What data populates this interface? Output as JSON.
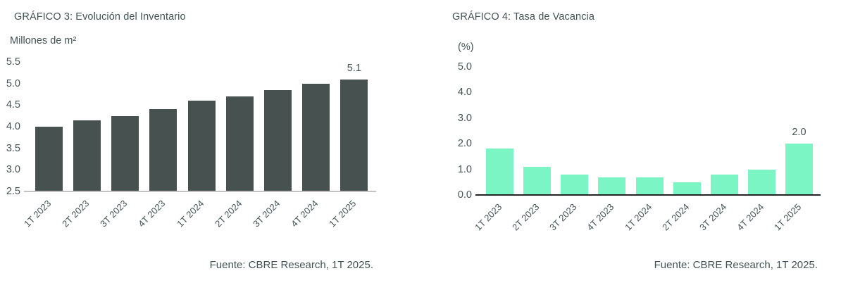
{
  "page": {
    "background": "#ffffff",
    "text_color": "#435254"
  },
  "chart_data": [
    {
      "type": "bar",
      "title": "GRÁFICO 3: Evolución del Inventario",
      "unit_label": "Millones de m²",
      "xlabel": "",
      "ylabel": "Millones de m²",
      "categories": [
        "1T 2023",
        "2T 2023",
        "3T 2023",
        "4T 2023",
        "1T 2024",
        "2T 2024",
        "3T 2024",
        "4T 2024",
        "1T 2025"
      ],
      "values": [
        4.0,
        4.15,
        4.25,
        4.4,
        4.6,
        4.7,
        4.85,
        5.0,
        5.1
      ],
      "ylim": [
        2.5,
        5.5
      ],
      "ytick_labels": [
        "5.5",
        "5.0",
        "4.5",
        "4.0",
        "3.5",
        "3.0",
        "2.5"
      ],
      "annotations": [
        {
          "index": 8,
          "text": "5.1"
        }
      ],
      "grid": false,
      "legend": null,
      "bar_color": "#465150",
      "axis_line_color": "#c3c3c3",
      "source": "Fuente: CBRE Research, 1T 2025."
    },
    {
      "type": "bar",
      "title": "GRÁFICO 4: Tasa de Vacancia",
      "unit_label": "(%)",
      "xlabel": "",
      "ylabel": "(%)",
      "categories": [
        "1T 2023",
        "2T 2023",
        "3T 2023",
        "4T 2023",
        "1T 2024",
        "2T 2024",
        "3T 2024",
        "4T 2024",
        "1T 2025"
      ],
      "values": [
        1.8,
        1.1,
        0.8,
        0.7,
        0.7,
        0.5,
        0.8,
        1.0,
        2.0
      ],
      "ylim": [
        0.0,
        5.0
      ],
      "ytick_labels": [
        "5.0",
        "4.0",
        "3.0",
        "2.0",
        "1.0",
        "0.0"
      ],
      "annotations": [
        {
          "index": 8,
          "text": "2.0"
        }
      ],
      "grid": false,
      "legend": null,
      "bar_color": "#7af5c3",
      "axis_line_color": "#242424",
      "source": "Fuente: CBRE Research, 1T 2025."
    }
  ]
}
